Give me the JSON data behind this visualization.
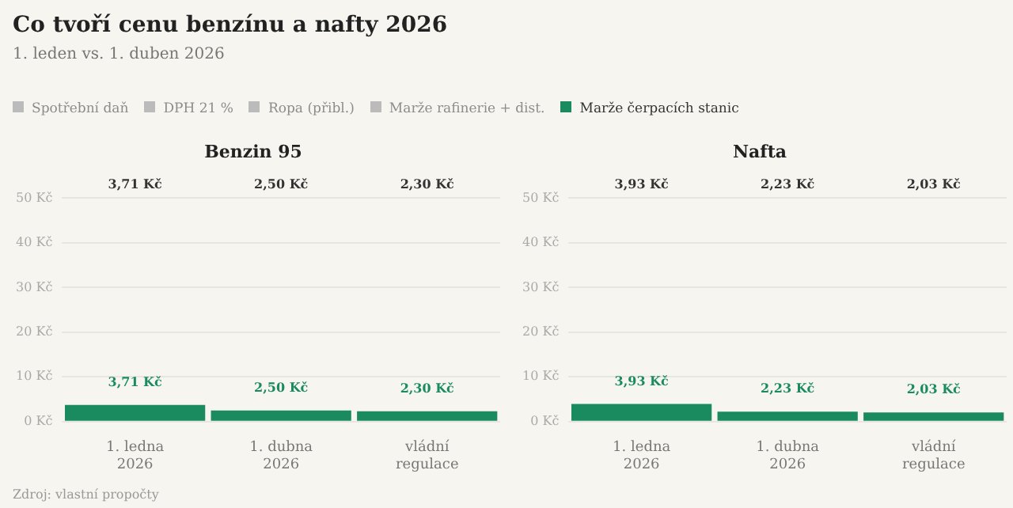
{
  "chart_data": [
    {
      "type": "other",
      "title": "Co tvoří cenu benzínu a nafty 2026",
      "subtitle": "1. leden vs. 1. duben 2026",
      "annotations": [
        "Zdroj: vlastní propočty"
      ]
    },
    {
      "type": "bar",
      "title": "Benzin 95",
      "categories": [
        "1. ledna 2026",
        "1. dubna 2026",
        "vládní regulace"
      ],
      "legend": "top",
      "grid": "y",
      "ylim": [
        0,
        50
      ],
      "yticks": [
        {
          "value": 0,
          "label": "0 Kč"
        },
        {
          "value": 10,
          "label": "10 Kč"
        },
        {
          "value": 20,
          "label": "20 Kč"
        },
        {
          "value": 30,
          "label": "30 Kč"
        },
        {
          "value": 40,
          "label": "40 Kč"
        },
        {
          "value": 50,
          "label": "50 Kč"
        }
      ],
      "series": [
        {
          "name": "Spotřební daň",
          "color": "#bbbbbb",
          "values": [
            null,
            null,
            null
          ]
        },
        {
          "name": "DPH 21 %",
          "color": "#bbbbbb",
          "values": [
            null,
            null,
            null
          ]
        },
        {
          "name": "Ropa (přibl.)",
          "color": "#bbbbbb",
          "values": [
            null,
            null,
            null
          ]
        },
        {
          "name": "Marže rafinerie + dist.",
          "color": "#bbbbbb",
          "values": [
            null,
            null,
            null
          ]
        },
        {
          "name": "Marže čerpacích stanic",
          "color": "#1a8a5f",
          "values": [
            3.71,
            2.5,
            2.3
          ],
          "value_labels": [
            "3,71 Kč",
            "2,50 Kč",
            "2,30 Kč"
          ]
        }
      ],
      "annotations": [
        "3,71 Kč",
        "2,50 Kč",
        "2,30 Kč"
      ]
    },
    {
      "type": "bar",
      "title": "Nafta",
      "categories": [
        "1. ledna 2026",
        "1. dubna 2026",
        "vládní regulace"
      ],
      "grid": "y",
      "ylim": [
        0,
        50
      ],
      "yticks": [
        {
          "value": 0,
          "label": "0 Kč"
        },
        {
          "value": 10,
          "label": "10 Kč"
        },
        {
          "value": 20,
          "label": "20 Kč"
        },
        {
          "value": 30,
          "label": "30 Kč"
        },
        {
          "value": 40,
          "label": "40 Kč"
        },
        {
          "value": 50,
          "label": "50 Kč"
        }
      ],
      "series": [
        {
          "color": "#1a8a5f",
          "values": [
            3.93,
            2.23,
            2.03
          ],
          "value_labels": [
            "3,93 Kč",
            "2,23 Kč",
            "2,03 Kč"
          ]
        }
      ],
      "annotations": [
        "3,93 Kč",
        "2,23 Kč",
        "2,03 Kč"
      ]
    }
  ]
}
